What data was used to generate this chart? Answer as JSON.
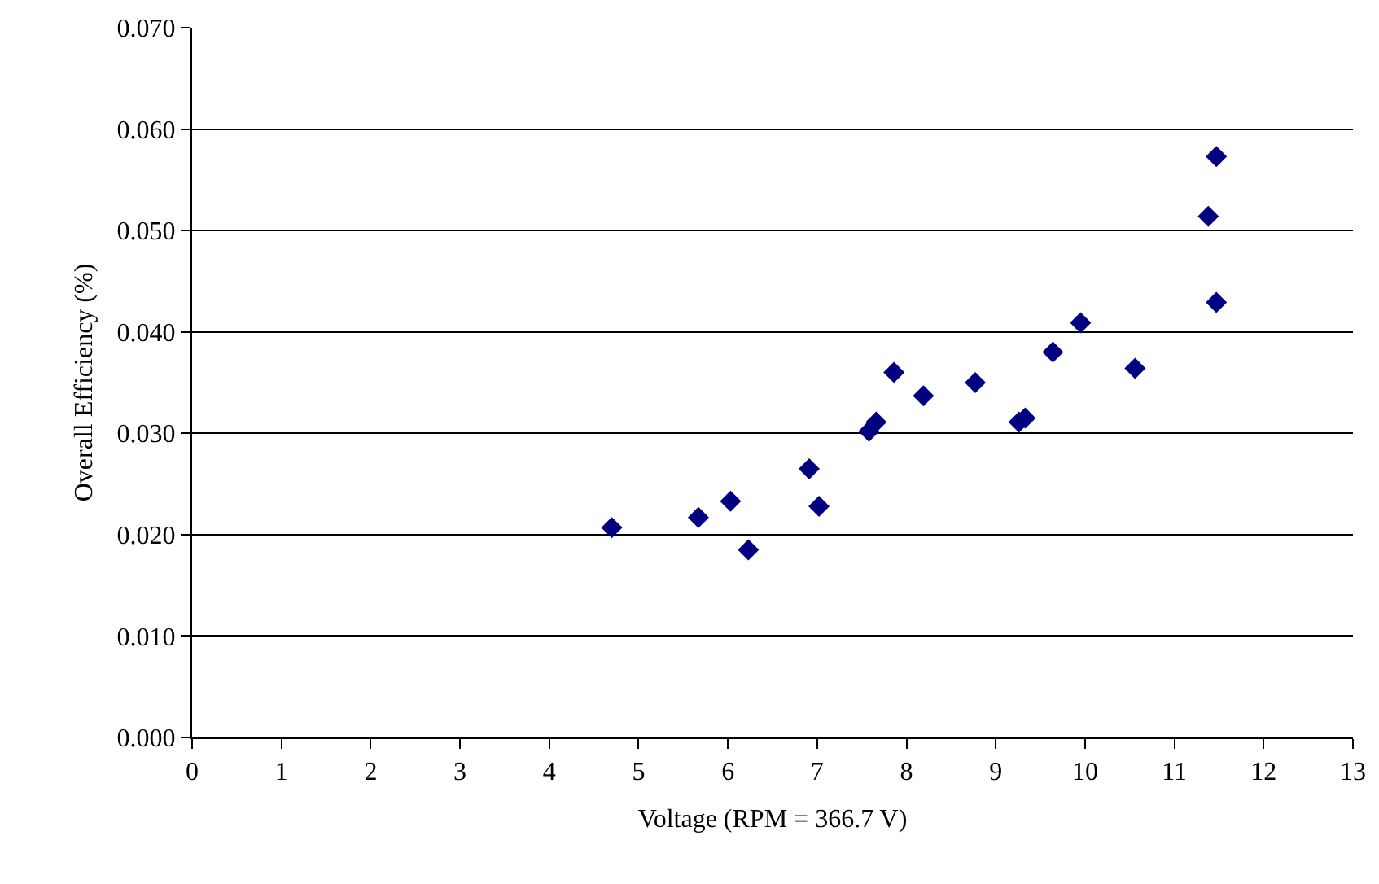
{
  "chart_data": {
    "type": "scatter",
    "xlabel": "Voltage (RPM = 366.7 V)",
    "ylabel": "Overall Efficiency (%)",
    "x": [
      4.7,
      5.67,
      6.03,
      6.23,
      6.91,
      7.02,
      7.58,
      7.66,
      7.86,
      8.19,
      8.77,
      9.26,
      9.33,
      9.64,
      9.95,
      10.56,
      11.38,
      11.47,
      11.47
    ],
    "series": [
      {
        "color": "#000080",
        "values": [
          0.0207,
          0.0217,
          0.0233,
          0.0185,
          0.0265,
          0.0228,
          0.0302,
          0.0311,
          0.036,
          0.0337,
          0.035,
          0.0311,
          0.0315,
          0.038,
          0.0409,
          0.0364,
          0.0514,
          0.0573,
          0.0429
        ]
      }
    ],
    "xlim": [
      0,
      13
    ],
    "xticks": [
      0,
      1,
      2,
      3,
      4,
      5,
      6,
      7,
      8,
      9,
      10,
      11,
      12,
      13
    ],
    "ylim": [
      0,
      0.07
    ],
    "yticks": [
      {
        "value": 0,
        "label": "0.000"
      },
      {
        "value": 0.01,
        "label": "0.010"
      },
      {
        "value": 0.02,
        "label": "0.020"
      },
      {
        "value": 0.03,
        "label": "0.030"
      },
      {
        "value": 0.04,
        "label": "0.040"
      },
      {
        "value": 0.05,
        "label": "0.050"
      },
      {
        "value": 0.06,
        "label": "0.060"
      },
      {
        "value": 0.07,
        "label": "0.070"
      }
    ],
    "grid": "y",
    "marker": "diamond",
    "legend": false
  }
}
